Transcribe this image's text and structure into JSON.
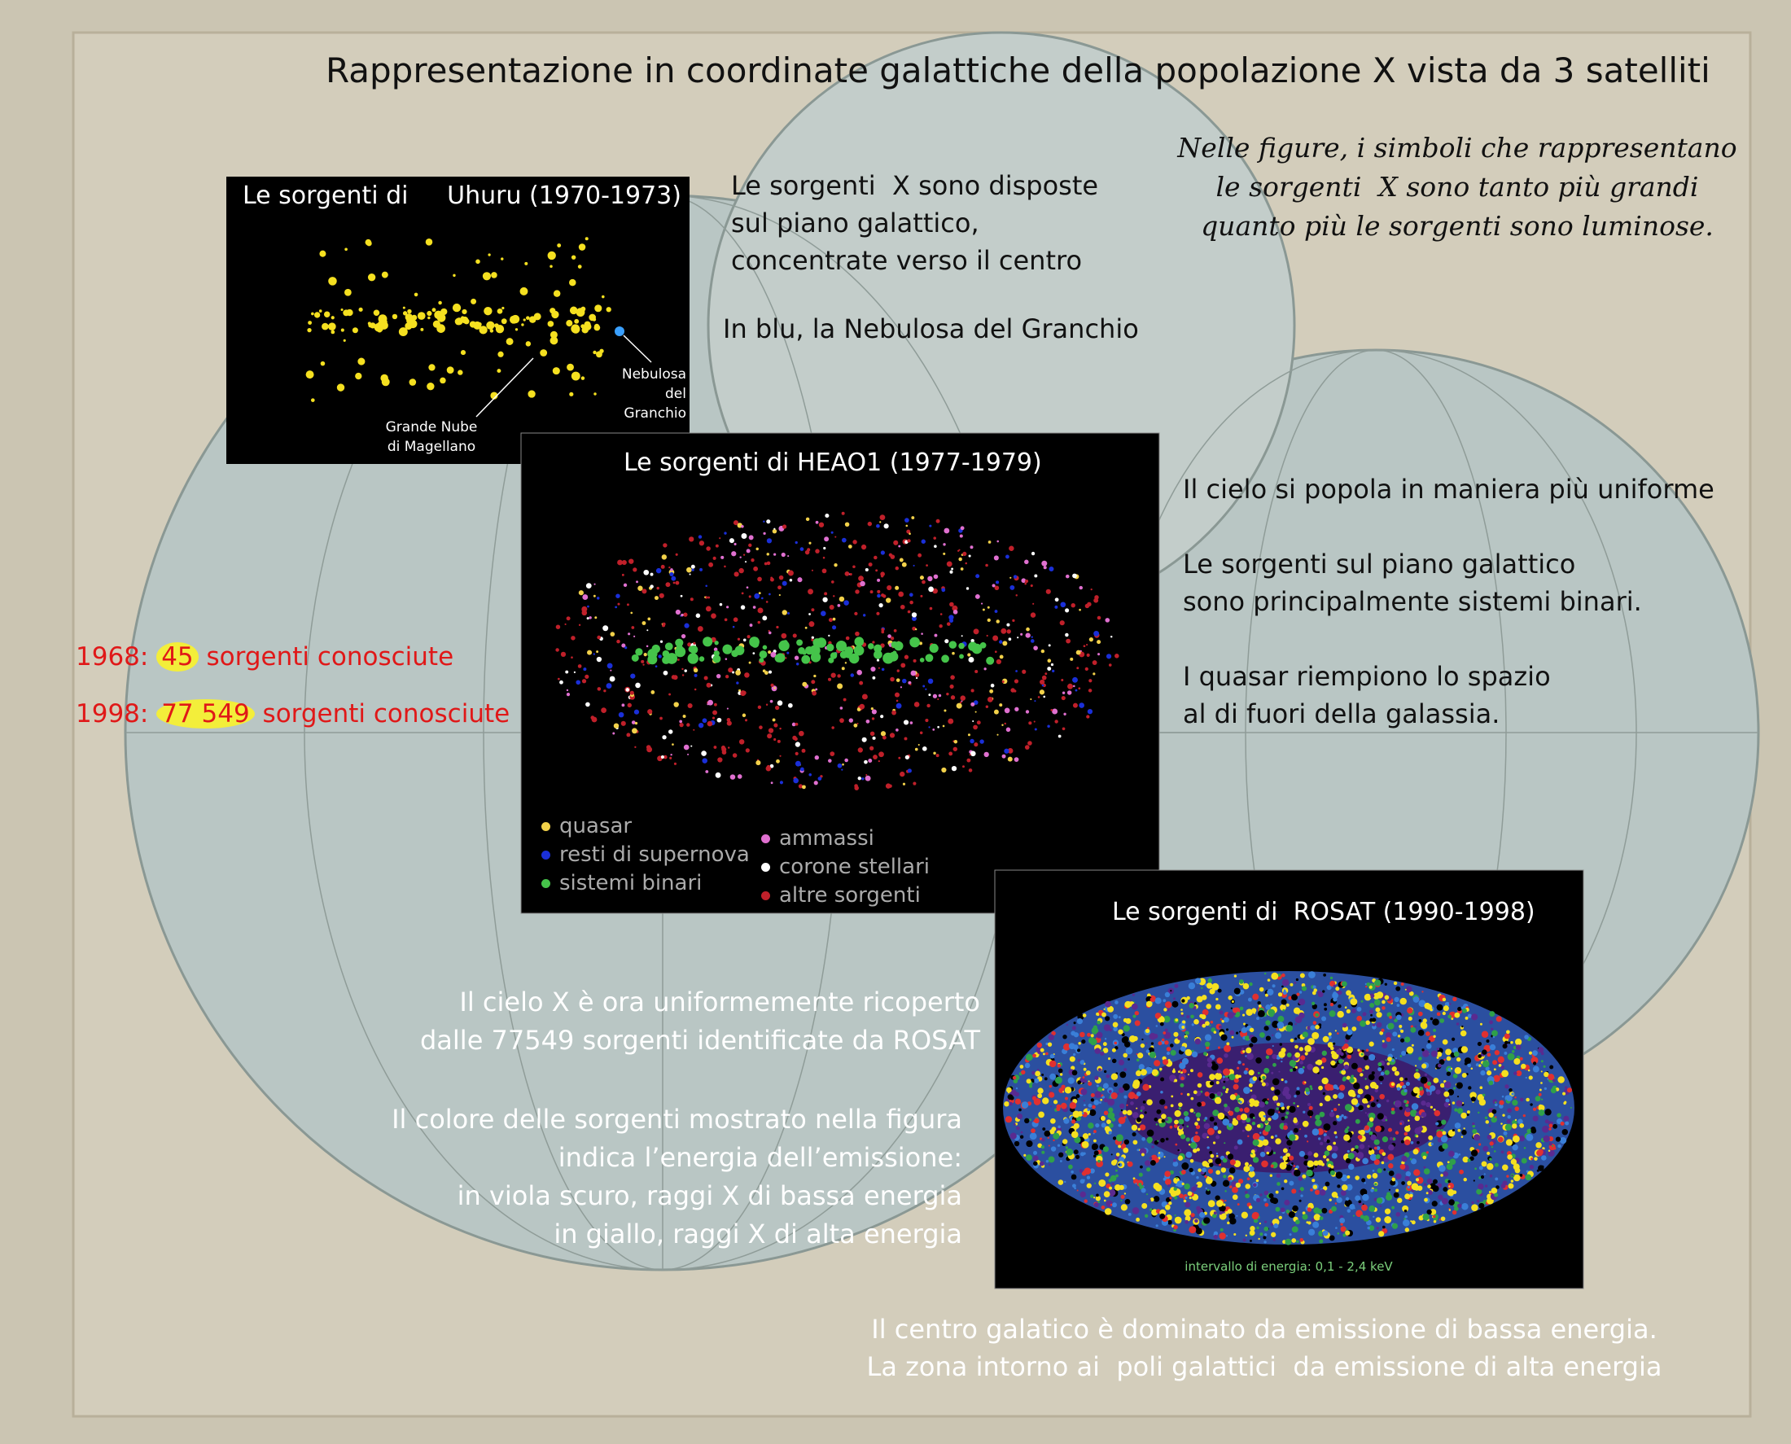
{
  "title": "Rappresentazione in coordinate galattiche della popolazione X vista da 3 satelliti",
  "note": [
    "Nelle figure, i simboli che rappresentano",
    "le sorgenti  X sono tanto più grandi",
    "quanto più le sorgenti sono luminose."
  ],
  "uhuru": {
    "title": "Le sorgenti di     Uhuru (1970-1973)",
    "crab_label": [
      "Nebulosa",
      "del",
      "Granchio"
    ],
    "lmc_label": [
      "Grande Nube",
      "di Magellano"
    ],
    "text": [
      "Le sorgenti  X sono disposte",
      "sul piano galattico,",
      "concentrate verso il centro"
    ],
    "crab_note": "In blu, la Nebulosa del Granchio"
  },
  "heao1": {
    "title": "Le sorgenti di HEAO1 (1977-1979)",
    "legend": [
      {
        "label": "quasar",
        "color": "#f2d14a"
      },
      {
        "label": "resti di supernova",
        "color": "#1a2fd8"
      },
      {
        "label": "sistemi binari",
        "color": "#45c44a"
      },
      {
        "label": "ammassi",
        "color": "#e070d0"
      },
      {
        "label": "corone stellari",
        "color": "#ffffff"
      },
      {
        "label": "altre sorgenti",
        "color": "#c0202a"
      }
    ],
    "text": [
      [
        "Il cielo si popola in maniera più uniforme"
      ],
      [
        "Le sorgenti sul piano galattico",
        "sono principalmente sistemi binari."
      ],
      [
        "I quasar riempiono lo spazio",
        "al di fuori della galassia."
      ]
    ]
  },
  "counts": [
    {
      "year": "1968:",
      "count": "45",
      "label": "sorgenti conosciute"
    },
    {
      "year": "1998:",
      "count": "77 549",
      "label": "sorgenti conosciute"
    }
  ],
  "rosat": {
    "title": "Le sorgenti di  ROSAT (1990-1998)",
    "caption": "intervallo di energia: 0,1 - 2,4 keV",
    "text": [
      [
        "Il cielo X è ora uniformemente ricoperto",
        "dalle 77549 sorgenti identificate da ROSAT"
      ],
      [
        "Il colore delle sorgenti mostrato nella figura",
        "indica l’energia dell’emissione:",
        "in viola scuro, raggi X di bassa energia",
        "in giallo, raggi X di alta energia"
      ]
    ],
    "bottom": [
      "Il centro galatico è dominato da emissione di bassa energia.",
      "La zona intorno ai  poli galattici  da emissione di alta energia"
    ]
  }
}
